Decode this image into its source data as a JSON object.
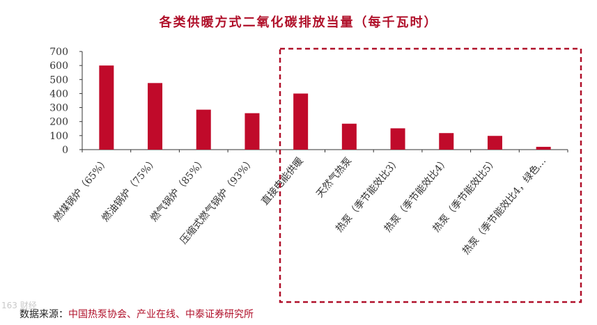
{
  "chart_data": {
    "type": "bar",
    "title": "各类供暖方式二氧化碳排放当量（每千瓦时）",
    "xlabel": "",
    "ylabel": "",
    "ylim": [
      0,
      700
    ],
    "yticks": [
      0,
      100,
      200,
      300,
      400,
      500,
      600,
      700
    ],
    "grid": false,
    "categories": [
      "燃煤锅炉（65%）",
      "燃油锅炉（75%）",
      "燃气锅炉（85%）",
      "压缩式燃气锅炉（93%）",
      "直接电能供暖",
      "天然气热泵",
      "热泵（季节能效比3）",
      "热泵（季节能效比4）",
      "热泵（季节能效比5）",
      "热泵（季节能效比4，绿色…"
    ],
    "values": [
      600,
      475,
      285,
      260,
      400,
      185,
      152,
      118,
      98,
      20
    ],
    "bar_color": "#c00a2a",
    "highlight_box_color": "#b0102a"
  },
  "source": {
    "label": "数据来源：",
    "text": "中国热泵协会、产业在线、中泰证券研究所"
  },
  "watermark": "163 财经"
}
